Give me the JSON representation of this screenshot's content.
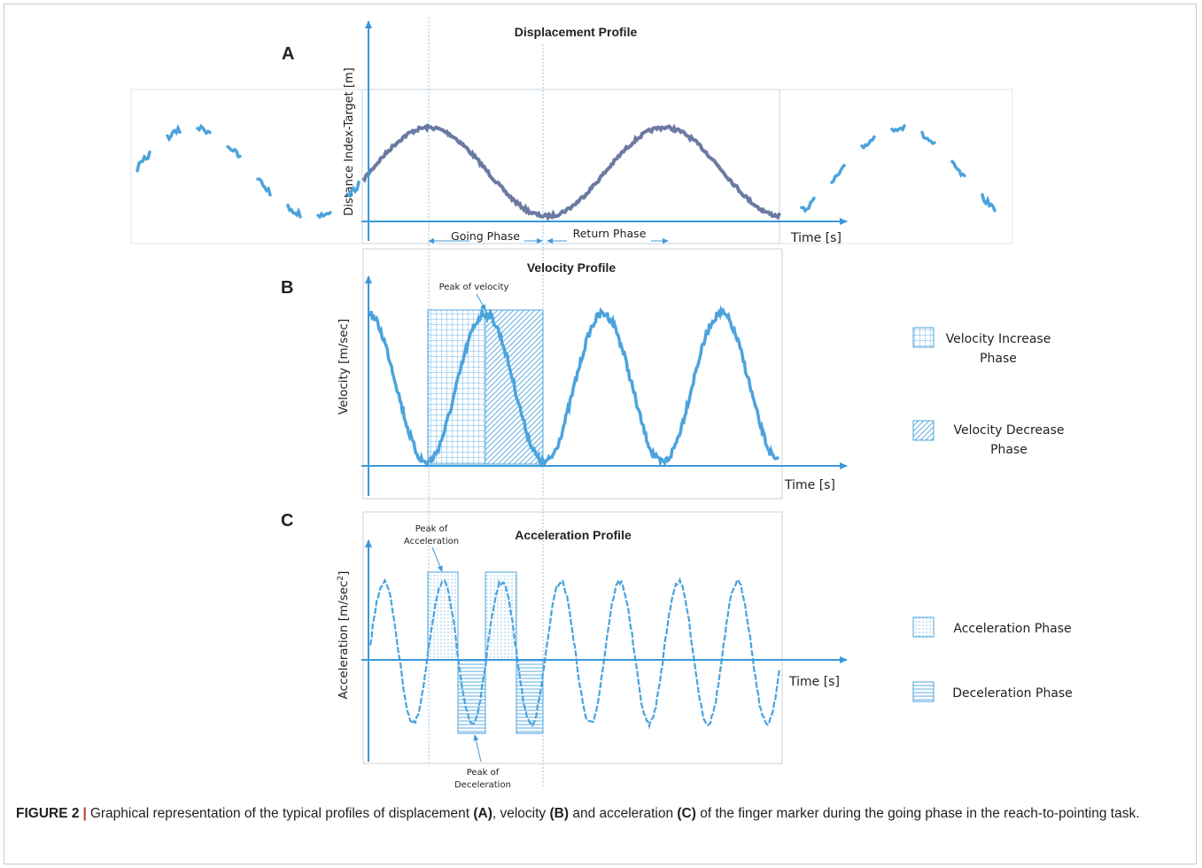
{
  "colors": {
    "curve": "#4ba3dd",
    "curve_dark": "#6b7aa2",
    "axis": "#3d98d8",
    "text": "#222222",
    "panel_border": "#d2d2d2",
    "caption_sep": "#c0392b"
  },
  "figure": {
    "panel_a": {
      "letter": "A",
      "title": "Displacement Profile",
      "ylabel": "Distance Index-Target [m]",
      "xlabel": "Time [s]",
      "phase_going": "Going Phase",
      "phase_return": "Return Phase"
    },
    "panel_b": {
      "letter": "B",
      "title": "Velocity Profile",
      "ylabel": "Velocity [m/sec]",
      "xlabel": "Time [s]",
      "annotation_peak": "Peak of velocity",
      "legend": {
        "increase_line1": "Velocity Increase",
        "increase_line2": "Phase",
        "decrease_line1": "Velocity Decrease",
        "decrease_line2": "Phase"
      }
    },
    "panel_c": {
      "letter": "C",
      "title": "Acceleration Profile",
      "ylabel_main": "Acceleration [m/sec",
      "ylabel_sup": "2",
      "ylabel_end": "]",
      "xlabel": "Time [s]",
      "annotation_peak_acc_line1": "Peak of",
      "annotation_peak_acc_line2": "Acceleration",
      "annotation_peak_dec_line1": "Peak of",
      "annotation_peak_dec_line2": "Deceleration",
      "legend": {
        "acceleration": "Acceleration Phase",
        "deceleration": "Deceleration Phase"
      }
    }
  },
  "caption": {
    "label": "FIGURE 2",
    "separator": "|",
    "text_1": "Graphical representation of the typical profiles of displacement ",
    "ref_a": "(A)",
    "text_2": ", velocity ",
    "ref_b": "(B)",
    "text_3": " and acceleration ",
    "ref_c": "(C)",
    "text_4": " of the finger marker during the going phase in the reach-to-pointing task."
  }
}
